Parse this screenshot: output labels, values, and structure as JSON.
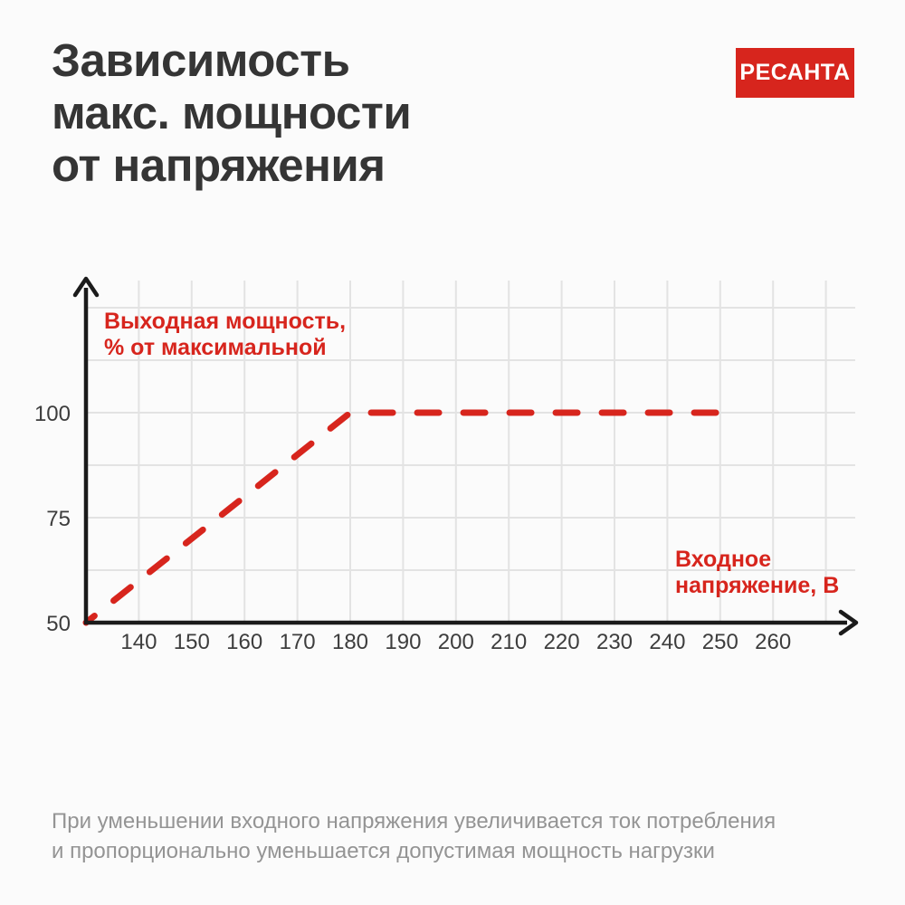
{
  "header": {
    "title": "Зависимость\nмакс. мощности\nот напряжения",
    "brand_logo": "РЕСАНТА"
  },
  "annotations": {
    "y_axis_label": "Выходная мощность,\n% от максимальной",
    "x_axis_label": "Входное\nнапряжение, В"
  },
  "footer": {
    "note": "При уменьшении входного напряжения увеличивается ток потребления\nи пропорционально уменьшается допустимая мощность нагрузки"
  },
  "colors": {
    "accent_red": "#d7251d",
    "background": "#fbfbfb",
    "title_gray": "#353535",
    "tick_gray": "#3d3d3d",
    "grid_gray": "#e3e3e3",
    "axis_black": "#1b1b1b",
    "footer_gray": "#949494",
    "logo_text": "#ffffff"
  },
  "chart_data": {
    "type": "line",
    "title": "Зависимость макс. мощности от напряжения",
    "xlabel": "Входное напряжение, В",
    "ylabel": "Выходная мощность, % от максимальной",
    "series": [
      {
        "name": "Выходная мощность, % от максимальной",
        "style": "dashed",
        "color": "#d7251d",
        "points": [
          {
            "x": 130,
            "y": 50
          },
          {
            "x": 180,
            "y": 100
          },
          {
            "x": 250,
            "y": 100
          }
        ]
      }
    ],
    "x_ticks": [
      140,
      150,
      160,
      170,
      180,
      190,
      200,
      210,
      220,
      230,
      240,
      250,
      260
    ],
    "y_ticks": [
      100,
      75,
      50
    ],
    "xlim": [
      130,
      275
    ],
    "ylim": [
      50,
      132
    ],
    "grid": true,
    "grid_x_extra": [
      270
    ],
    "grid_y_values": [
      62.5,
      75,
      87.5,
      100,
      112.5,
      125
    ],
    "legend_position": "none"
  }
}
